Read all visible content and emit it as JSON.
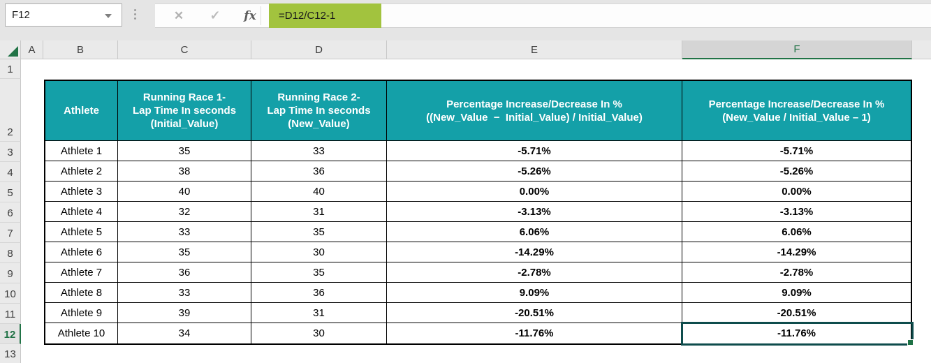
{
  "name_box": {
    "value": "F12"
  },
  "formula_bar": {
    "cancel": "✕",
    "confirm": "✓",
    "fx": "fx",
    "formula": "=D12/C12-1"
  },
  "grid": {
    "column_headers": [
      "A",
      "B",
      "C",
      "D",
      "E",
      "F"
    ],
    "selected_column": "F",
    "row_headers": [
      "1",
      "2",
      "3",
      "4",
      "5",
      "6",
      "7",
      "8",
      "9",
      "10",
      "11",
      "12",
      "13"
    ],
    "selected_row": "12",
    "selected_cell": "F12"
  },
  "table": {
    "headers": {
      "athlete": "Athlete",
      "race1": "Running Race 1-\nLap Time In seconds\n(Initial_Value)",
      "race2": "Running Race 2-\nLap Time In seconds\n(New_Value)",
      "pct_formula1": "Percentage Increase/Decrease In %\n((New_Value  −  Initial_Value) / Initial_Value)",
      "pct_formula2": "Percentage Increase/Decrease In %\n(New_Value / Initial_Value – 1)"
    },
    "rows": [
      {
        "athlete": "Athlete 1",
        "race1": "35",
        "race2": "33",
        "pct1": "-5.71%",
        "pct2": "-5.71%"
      },
      {
        "athlete": "Athlete 2",
        "race1": "38",
        "race2": "36",
        "pct1": "-5.26%",
        "pct2": "-5.26%"
      },
      {
        "athlete": "Athlete 3",
        "race1": "40",
        "race2": "40",
        "pct1": "0.00%",
        "pct2": "0.00%"
      },
      {
        "athlete": "Athlete 4",
        "race1": "32",
        "race2": "31",
        "pct1": "-3.13%",
        "pct2": "-3.13%"
      },
      {
        "athlete": "Athlete 5",
        "race1": "33",
        "race2": "35",
        "pct1": "6.06%",
        "pct2": "6.06%"
      },
      {
        "athlete": "Athlete 6",
        "race1": "35",
        "race2": "30",
        "pct1": "-14.29%",
        "pct2": "-14.29%"
      },
      {
        "athlete": "Athlete 7",
        "race1": "36",
        "race2": "35",
        "pct1": "-2.78%",
        "pct2": "-2.78%"
      },
      {
        "athlete": "Athlete 8",
        "race1": "33",
        "race2": "36",
        "pct1": "9.09%",
        "pct2": "9.09%"
      },
      {
        "athlete": "Athlete 9",
        "race1": "39",
        "race2": "31",
        "pct1": "-20.51%",
        "pct2": "-20.51%"
      },
      {
        "athlete": "Athlete 10",
        "race1": "34",
        "race2": "30",
        "pct1": "-11.76%",
        "pct2": "-11.76%"
      }
    ]
  },
  "colors": {
    "header_fill": "#14A0A8",
    "accent_green": "#217346",
    "formula_highlight": "#A2C33E",
    "selection_border": "#0E4C4C"
  }
}
